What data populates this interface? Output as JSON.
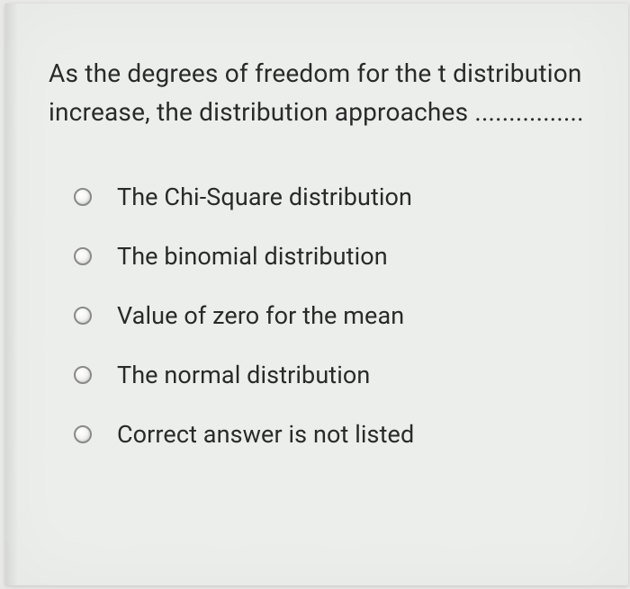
{
  "question": {
    "text": "As the degrees of freedom for the t distribution increase, the distribution approaches ................"
  },
  "options": [
    {
      "label": "The Chi-Square distribution"
    },
    {
      "label": "The binomial distribution"
    },
    {
      "label": "Value of zero for the mean"
    },
    {
      "label": "The normal distribution"
    },
    {
      "label": "Correct answer is not listed"
    }
  ],
  "styling": {
    "card_background": "#eceeec",
    "page_background": "#e8e8e6",
    "text_color": "#2a2a2a",
    "radio_border_color": "#8a8a88",
    "question_fontsize": 28,
    "option_fontsize": 27
  }
}
